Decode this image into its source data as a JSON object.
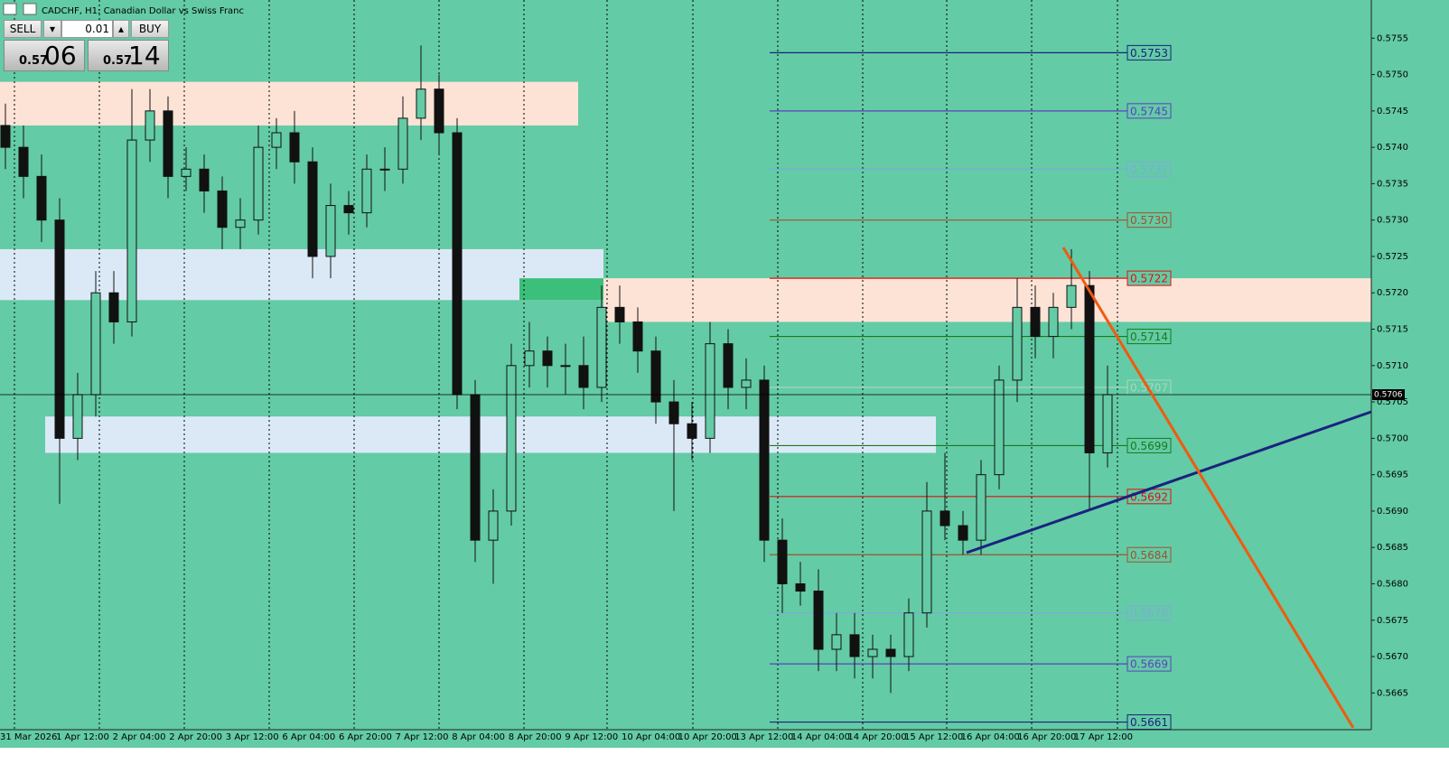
{
  "chart_data": {
    "type": "candlestick",
    "title": "CADCHF, H1: Canadian Dollar vs Swiss Franc",
    "trade_panel": {
      "sell": "SELL",
      "buy": "BUY",
      "volume": "0.01",
      "bid_big": "0.57",
      "bid_small": "06",
      "ask_big": "0.57",
      "ask_small": "14"
    },
    "x_labels": [
      "31 Mar 2026",
      "1 Apr 12:00",
      "2 Apr 04:00",
      "2 Apr 20:00",
      "3 Apr 12:00",
      "6 Apr 04:00",
      "6 Apr 20:00",
      "7 Apr 12:00",
      "8 Apr 04:00",
      "8 Apr 20:00",
      "9 Apr 12:00",
      "10 Apr 04:00",
      "10 Apr 20:00",
      "13 Apr 12:00",
      "14 Apr 04:00",
      "14 Apr 20:00",
      "15 Apr 12:00",
      "16 Apr 04:00",
      "16 Apr 20:00",
      "17 Apr 12:00"
    ],
    "ylim": [
      0.566,
      0.576
    ],
    "yticks": [
      0.5665,
      {
        "value": 0.567,
        "label": "0.5670"
      },
      0.5675,
      {
        "value": 0.568,
        "label": "0.5680"
      },
      0.5685,
      {
        "value": 0.569,
        "label": "0.5690"
      },
      0.5695,
      {
        "value": 0.57,
        "label": "0.5700"
      },
      0.5705,
      {
        "value": 0.571,
        "label": "0.5710"
      },
      0.5715,
      {
        "value": 0.572,
        "label": "0.5720"
      },
      0.5725,
      {
        "value": 0.573,
        "label": "0.5730"
      },
      0.5735,
      {
        "value": 0.574,
        "label": "0.5740"
      },
      0.5745,
      {
        "value": 0.575,
        "label": "0.5750"
      },
      0.5755
    ],
    "current_price": 0.5706,
    "levels": [
      {
        "value": 0.5753,
        "color": "#1a237e"
      },
      {
        "value": 0.5745,
        "color": "#5b3fc4"
      },
      {
        "value": 0.5737,
        "color": "#7fa8e0"
      },
      {
        "value": 0.573,
        "label": "0.5730",
        "color": "#a0522d"
      },
      {
        "value": 0.5722,
        "color": "#e01010"
      },
      {
        "value": 0.5714,
        "color": "#1a7a1a"
      },
      {
        "value": 0.5707,
        "color": "#a8d8c0"
      },
      {
        "value": 0.5699,
        "color": "#1a7a1a"
      },
      {
        "value": 0.5692,
        "color": "#e01010"
      },
      {
        "value": 0.5684,
        "color": "#a0522d"
      },
      {
        "value": 0.5676,
        "color": "#7fa8e0"
      },
      {
        "value": 0.5669,
        "color": "#5b3fc4"
      },
      {
        "value": 0.5661,
        "color": "#1a237e"
      }
    ],
    "zones": [
      {
        "from": 0.5749,
        "to": 0.5743,
        "color": "#fde3d6"
      },
      {
        "from": 0.5726,
        "to": 0.5719,
        "color": "#dbe9f7"
      },
      {
        "from": 0.5703,
        "to": 0.5698,
        "color": "#dbe9f7"
      },
      {
        "from": 0.5722,
        "to": 0.5719,
        "color": "#3cbf7a"
      },
      {
        "from": 0.5722,
        "to": 0.5716,
        "color": "#fde3d6"
      }
    ],
    "open": [
      0.5743,
      0.574,
      0.5736,
      0.573,
      0.57,
      0.5706,
      0.572,
      0.5716,
      0.5741,
      0.5745,
      0.5736,
      0.5737,
      0.5734,
      0.5729,
      0.573,
      0.574,
      0.5742,
      0.5738,
      0.5725,
      0.5732,
      0.5731,
      0.5737,
      0.5737,
      0.5744,
      0.5748,
      0.5742,
      0.5706,
      0.5686,
      0.569,
      0.571,
      0.5712,
      0.571,
      0.571,
      0.5707,
      0.5718,
      0.5716,
      0.5712,
      0.5705,
      0.5702,
      0.57,
      0.5713,
      0.5707,
      0.5708,
      0.5686,
      0.568,
      0.5679,
      0.5671,
      0.5673,
      0.567,
      0.5671,
      0.567,
      0.5676,
      0.569,
      0.5688,
      0.5686,
      0.5695,
      0.5708,
      0.5718,
      0.5714,
      0.5718,
      0.5721,
      0.5698
    ],
    "high": [
      0.5746,
      0.5743,
      0.5739,
      0.5733,
      0.5709,
      0.5723,
      0.5723,
      0.5748,
      0.5748,
      0.5747,
      0.574,
      0.5739,
      0.5736,
      0.5733,
      0.5743,
      0.5744,
      0.5745,
      0.574,
      0.5735,
      0.5734,
      0.5739,
      0.574,
      0.5747,
      0.5754,
      0.575,
      0.5744,
      0.5708,
      0.5693,
      0.5713,
      0.5716,
      0.5714,
      0.5713,
      0.5714,
      0.5721,
      0.5721,
      0.5718,
      0.5714,
      0.5708,
      0.5705,
      0.5716,
      0.5715,
      0.5711,
      0.571,
      0.5689,
      0.5683,
      0.5682,
      0.5676,
      0.5676,
      0.5673,
      0.5673,
      0.5678,
      0.5694,
      0.5698,
      0.569,
      0.5697,
      0.571,
      0.5722,
      0.5721,
      0.572,
      0.5726,
      0.5723,
      0.571
    ],
    "low": [
      0.5737,
      0.5733,
      0.5727,
      0.5691,
      0.5697,
      0.5703,
      0.5713,
      0.5714,
      0.5738,
      0.5733,
      0.5734,
      0.5731,
      0.5726,
      0.5726,
      0.5728,
      0.5737,
      0.5735,
      0.5722,
      0.5722,
      0.5728,
      0.5729,
      0.5734,
      0.5735,
      0.5741,
      0.5739,
      0.5704,
      0.5683,
      0.568,
      0.5688,
      0.5707,
      0.5707,
      0.5706,
      0.5704,
      0.5705,
      0.5713,
      0.5709,
      0.5702,
      0.569,
      0.5697,
      0.5698,
      0.5704,
      0.5704,
      0.5683,
      0.5676,
      0.5677,
      0.5668,
      0.5668,
      0.5667,
      0.5667,
      0.5665,
      0.5668,
      0.5674,
      0.5686,
      0.5684,
      0.5684,
      0.5693,
      0.5705,
      0.5711,
      0.5711,
      0.5715,
      0.569,
      0.5696
    ],
    "close": [
      0.574,
      0.5736,
      0.573,
      0.57,
      0.5706,
      0.572,
      0.5716,
      0.5741,
      0.5745,
      0.5736,
      0.5737,
      0.5734,
      0.5729,
      0.573,
      0.574,
      0.5742,
      0.5738,
      0.5725,
      0.5732,
      0.5731,
      0.5737,
      0.5737,
      0.5744,
      0.5748,
      0.5742,
      0.5706,
      0.5686,
      0.569,
      0.571,
      0.5712,
      0.571,
      0.571,
      0.5707,
      0.5718,
      0.5716,
      0.5712,
      0.5705,
      0.5702,
      0.57,
      0.5713,
      0.5707,
      0.5708,
      0.5686,
      0.568,
      0.5679,
      0.5671,
      0.5673,
      0.567,
      0.5671,
      0.567,
      0.5676,
      0.569,
      0.5688,
      0.5686,
      0.5695,
      0.5708,
      0.5718,
      0.5714,
      0.5718,
      0.5721,
      0.5698,
      0.5706
    ],
    "candle_color": "#111111",
    "background": "#63cba5"
  }
}
